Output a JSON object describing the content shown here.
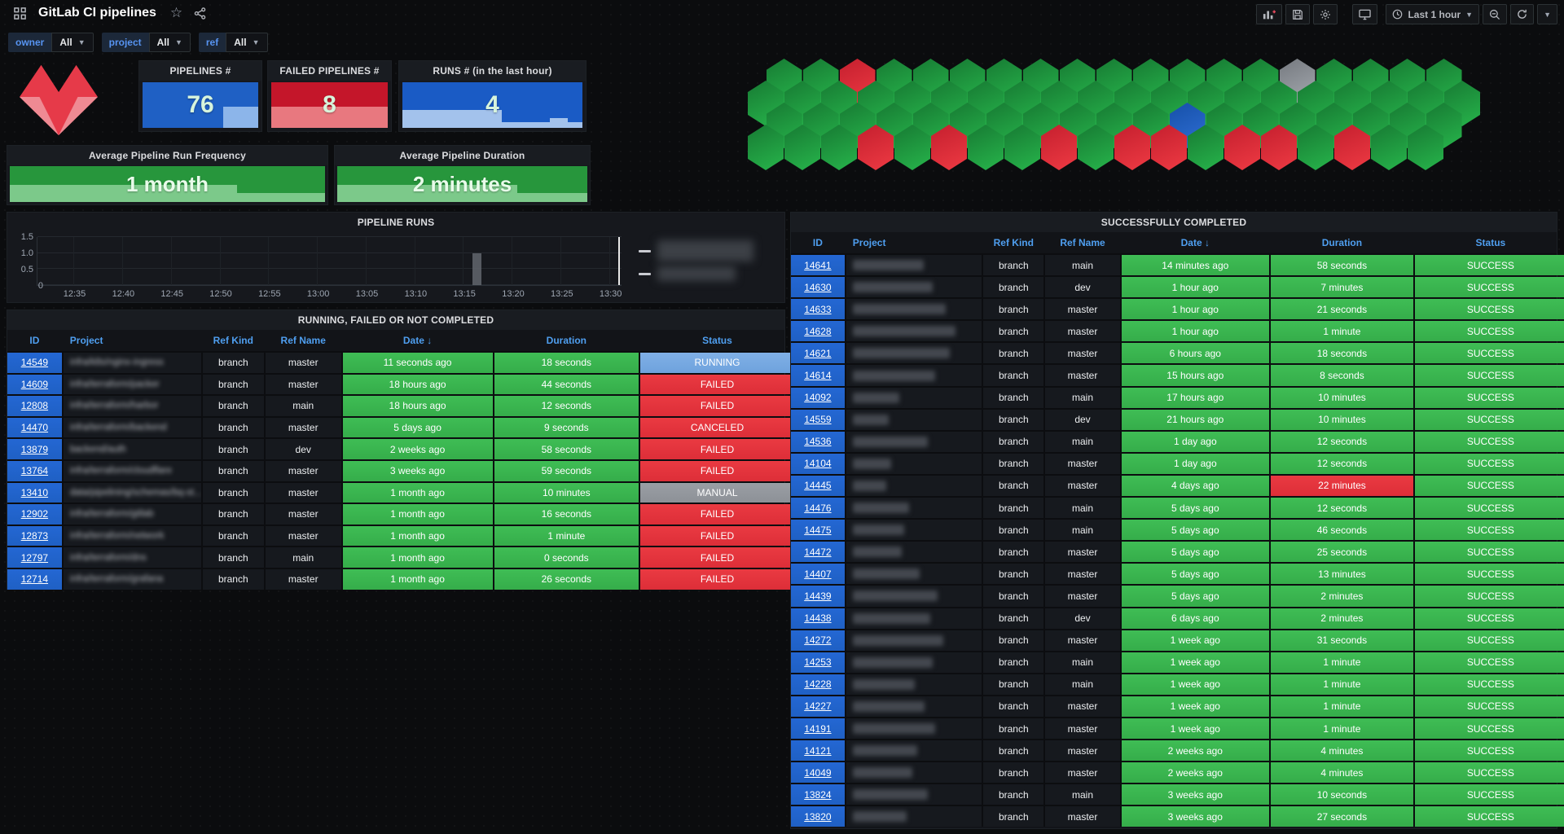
{
  "header": {
    "title": "GitLab CI pipelines",
    "icons": [
      "apps-grid-icon",
      "star-icon",
      "share-icon"
    ],
    "toolbar": {
      "add_panel": "add-panel",
      "save": "save-dashboard",
      "settings": "dashboard-settings",
      "tv_mode": "cycle-view-mode",
      "time_range": "Last 1 hour",
      "zoom_out": "zoom-out-time-range",
      "refresh": "refresh-dashboard"
    }
  },
  "filters": [
    {
      "label": "owner",
      "value": "All"
    },
    {
      "label": "project",
      "value": "All"
    },
    {
      "label": "ref",
      "value": "All"
    }
  ],
  "stats": [
    {
      "title": "PIPELINES #",
      "value": "76",
      "bg": "#1f60c4",
      "spark": "#8cb5ea",
      "shape": "right-step"
    },
    {
      "title": "FAILED PIPELINES #",
      "value": "8",
      "bg": "#c4162a",
      "spark": "#e8787f",
      "shape": "bottom-half"
    },
    {
      "title": "RUNS # (in the last hour)",
      "value": "4",
      "bg": "#1a5bc5",
      "spark": "#a3c2ec",
      "shape": "left-plateau"
    }
  ],
  "averages": [
    {
      "title": "Average Pipeline Run Frequency",
      "value": "1 month",
      "bg": "#27963c",
      "spark": "#7cc98a"
    },
    {
      "title": "Average Pipeline Duration",
      "value": "2 minutes",
      "bg": "#27963c",
      "spark": "#7cc98a"
    }
  ],
  "honeycomb": {
    "palette": {
      "g": [
        "#177a33",
        "#27b44b"
      ],
      "r": [
        "#c41f2e",
        "#ee3a43"
      ],
      "b": [
        "#16屋50a8",
        "#2f6fd6"
      ],
      "x": [
        "#75797f",
        "#a6abb1"
      ]
    },
    "rows": [
      {
        "offset": 1,
        "cells": [
          "g",
          "g",
          "r",
          "g",
          "g",
          "g",
          "g",
          "g",
          "g",
          "g",
          "g",
          "g",
          "g",
          "g",
          "x",
          "g",
          "g",
          "g",
          "g"
        ]
      },
      {
        "offset": 0,
        "cells": [
          "g",
          "g",
          "g",
          "g",
          "g",
          "g",
          "g",
          "g",
          "g",
          "g",
          "g",
          "g",
          "g",
          "g",
          "g",
          "g",
          "g",
          "g",
          "g",
          "g"
        ]
      },
      {
        "offset": 1,
        "cells": [
          "g",
          "g",
          "g",
          "g",
          "g",
          "g",
          "g",
          "g",
          "g",
          "g",
          "g",
          "b",
          "g",
          "g",
          "g",
          "g",
          "g",
          "g",
          "g"
        ]
      },
      {
        "offset": 0,
        "cells": [
          "g",
          "g",
          "g",
          "r",
          "g",
          "r",
          "g",
          "g",
          "r",
          "g",
          "r",
          "r",
          "g",
          "r",
          "r",
          "g",
          "r",
          "g",
          "g"
        ]
      }
    ]
  },
  "chart_data": {
    "type": "bar",
    "title": "PIPELINE RUNS",
    "x_ticks": [
      "12:35",
      "12:40",
      "12:45",
      "12:50",
      "12:55",
      "13:00",
      "13:05",
      "13:10",
      "13:15",
      "13:20",
      "13:25",
      "13:30"
    ],
    "y_ticks": [
      "1.5",
      "1.0",
      "0.5",
      "0"
    ],
    "ylim": [
      0,
      1.5
    ],
    "bars": [
      {
        "x": "13:16",
        "value": 1
      }
    ],
    "now_marker": "13:30",
    "grid": true,
    "legend_position": "right",
    "legend": [
      {
        "redacted": true
      },
      {
        "redacted": true
      }
    ]
  },
  "left_table": {
    "title": "RUNNING, FAILED OR NOT COMPLETED",
    "columns": [
      "ID",
      "Project",
      "Ref Kind",
      "Ref Name",
      "Date ↓",
      "Duration",
      "Status"
    ],
    "rows": [
      {
        "id": "14549",
        "project": "infra/k8s/nginx-ingress",
        "ref_kind": "branch",
        "ref_name": "master",
        "date": "11 seconds ago",
        "duration": "18 seconds",
        "status": "RUNNING"
      },
      {
        "id": "14609",
        "project": "infra/terraform/packer",
        "ref_kind": "branch",
        "ref_name": "master",
        "date": "18 hours ago",
        "duration": "44 seconds",
        "status": "FAILED"
      },
      {
        "id": "12808",
        "project": "infra/terraform/harbor",
        "ref_kind": "branch",
        "ref_name": "main",
        "date": "18 hours ago",
        "duration": "12 seconds",
        "status": "FAILED"
      },
      {
        "id": "14470",
        "project": "infra/terraform/backend",
        "ref_kind": "branch",
        "ref_name": "master",
        "date": "5 days ago",
        "duration": "9 seconds",
        "status": "CANCELED"
      },
      {
        "id": "13879",
        "project": "backend/auth",
        "ref_kind": "branch",
        "ref_name": "dev",
        "date": "2 weeks ago",
        "duration": "58 seconds",
        "status": "FAILED"
      },
      {
        "id": "13764",
        "project": "infra/terraform/cloudflare",
        "ref_kind": "branch",
        "ref_name": "master",
        "date": "3 weeks ago",
        "duration": "59 seconds",
        "status": "FAILED"
      },
      {
        "id": "13410",
        "project": "data/pipelining/schemas/bq-st...",
        "ref_kind": "branch",
        "ref_name": "master",
        "date": "1 month ago",
        "duration": "10 minutes",
        "status": "MANUAL"
      },
      {
        "id": "12902",
        "project": "infra/terraform/gitlab",
        "ref_kind": "branch",
        "ref_name": "master",
        "date": "1 month ago",
        "duration": "16 seconds",
        "status": "FAILED"
      },
      {
        "id": "12873",
        "project": "infra/terraform/network",
        "ref_kind": "branch",
        "ref_name": "master",
        "date": "1 month ago",
        "duration": "1 minute",
        "status": "FAILED"
      },
      {
        "id": "12797",
        "project": "infra/terraform/dns",
        "ref_kind": "branch",
        "ref_name": "main",
        "date": "1 month ago",
        "duration": "0 seconds",
        "status": "FAILED"
      },
      {
        "id": "12714",
        "project": "infra/terraform/grafana",
        "ref_kind": "branch",
        "ref_name": "master",
        "date": "1 month ago",
        "duration": "26 seconds",
        "status": "FAILED"
      }
    ]
  },
  "right_table": {
    "title": "SUCCESSFULLY COMPLETED",
    "columns": [
      "ID",
      "Project",
      "Ref Kind",
      "Ref Name",
      "Date ↓",
      "Duration",
      "Status"
    ],
    "rows": [
      {
        "id": "14641",
        "project_redacted": true,
        "blur_w": 55,
        "ref_kind": "branch",
        "ref_name": "main",
        "date": "14 minutes ago",
        "duration": "58 seconds",
        "status": "SUCCESS"
      },
      {
        "id": "14630",
        "project_redacted": true,
        "blur_w": 62,
        "ref_kind": "branch",
        "ref_name": "dev",
        "date": "1 hour ago",
        "duration": "7 minutes",
        "status": "SUCCESS"
      },
      {
        "id": "14633",
        "project_redacted": true,
        "blur_w": 72,
        "ref_kind": "branch",
        "ref_name": "master",
        "date": "1 hour ago",
        "duration": "21 seconds",
        "status": "SUCCESS"
      },
      {
        "id": "14628",
        "project_redacted": true,
        "blur_w": 80,
        "ref_kind": "branch",
        "ref_name": "master",
        "date": "1 hour ago",
        "duration": "1 minute",
        "status": "SUCCESS"
      },
      {
        "id": "14621",
        "project_redacted": true,
        "blur_w": 75,
        "ref_kind": "branch",
        "ref_name": "master",
        "date": "6 hours ago",
        "duration": "18 seconds",
        "status": "SUCCESS"
      },
      {
        "id": "14614",
        "project_redacted": true,
        "blur_w": 64,
        "ref_kind": "branch",
        "ref_name": "master",
        "date": "15 hours ago",
        "duration": "8 seconds",
        "status": "SUCCESS"
      },
      {
        "id": "14092",
        "project_redacted": true,
        "blur_w": 36,
        "ref_kind": "branch",
        "ref_name": "main",
        "date": "17 hours ago",
        "duration": "10 minutes",
        "status": "SUCCESS"
      },
      {
        "id": "14559",
        "project_redacted": true,
        "blur_w": 28,
        "ref_kind": "branch",
        "ref_name": "dev",
        "date": "21 hours ago",
        "duration": "10 minutes",
        "status": "SUCCESS"
      },
      {
        "id": "14536",
        "project_redacted": true,
        "blur_w": 58,
        "ref_kind": "branch",
        "ref_name": "main",
        "date": "1 day ago",
        "duration": "12 seconds",
        "status": "SUCCESS"
      },
      {
        "id": "14104",
        "project_redacted": true,
        "blur_w": 30,
        "ref_kind": "branch",
        "ref_name": "master",
        "date": "1 day ago",
        "duration": "12 seconds",
        "status": "SUCCESS"
      },
      {
        "id": "14445",
        "project_redacted": true,
        "blur_w": 26,
        "ref_kind": "branch",
        "ref_name": "master",
        "date": "4 days ago",
        "duration": "22 minutes",
        "status": "SUCCESS",
        "duration_alert": true
      },
      {
        "id": "14476",
        "project_redacted": true,
        "blur_w": 44,
        "ref_kind": "branch",
        "ref_name": "main",
        "date": "5 days ago",
        "duration": "12 seconds",
        "status": "SUCCESS"
      },
      {
        "id": "14475",
        "project_redacted": true,
        "blur_w": 40,
        "ref_kind": "branch",
        "ref_name": "main",
        "date": "5 days ago",
        "duration": "46 seconds",
        "status": "SUCCESS"
      },
      {
        "id": "14472",
        "project_redacted": true,
        "blur_w": 38,
        "ref_kind": "branch",
        "ref_name": "master",
        "date": "5 days ago",
        "duration": "25 seconds",
        "status": "SUCCESS"
      },
      {
        "id": "14407",
        "project_redacted": true,
        "blur_w": 52,
        "ref_kind": "branch",
        "ref_name": "master",
        "date": "5 days ago",
        "duration": "13 minutes",
        "status": "SUCCESS"
      },
      {
        "id": "14439",
        "project_redacted": true,
        "blur_w": 66,
        "ref_kind": "branch",
        "ref_name": "master",
        "date": "5 days ago",
        "duration": "2 minutes",
        "status": "SUCCESS"
      },
      {
        "id": "14438",
        "project_redacted": true,
        "blur_w": 60,
        "ref_kind": "branch",
        "ref_name": "dev",
        "date": "6 days ago",
        "duration": "2 minutes",
        "status": "SUCCESS"
      },
      {
        "id": "14272",
        "project_redacted": true,
        "blur_w": 70,
        "ref_kind": "branch",
        "ref_name": "master",
        "date": "1 week ago",
        "duration": "31 seconds",
        "status": "SUCCESS"
      },
      {
        "id": "14253",
        "project_redacted": true,
        "blur_w": 62,
        "ref_kind": "branch",
        "ref_name": "main",
        "date": "1 week ago",
        "duration": "1 minute",
        "status": "SUCCESS"
      },
      {
        "id": "14228",
        "project_redacted": true,
        "blur_w": 48,
        "ref_kind": "branch",
        "ref_name": "main",
        "date": "1 week ago",
        "duration": "1 minute",
        "status": "SUCCESS"
      },
      {
        "id": "14227",
        "project_redacted": true,
        "blur_w": 56,
        "ref_kind": "branch",
        "ref_name": "master",
        "date": "1 week ago",
        "duration": "1 minute",
        "status": "SUCCESS"
      },
      {
        "id": "14191",
        "project_redacted": true,
        "blur_w": 64,
        "ref_kind": "branch",
        "ref_name": "master",
        "date": "1 week ago",
        "duration": "1 minute",
        "status": "SUCCESS"
      },
      {
        "id": "14121",
        "project_redacted": true,
        "blur_w": 50,
        "ref_kind": "branch",
        "ref_name": "master",
        "date": "2 weeks ago",
        "duration": "4 minutes",
        "status": "SUCCESS"
      },
      {
        "id": "14049",
        "project_redacted": true,
        "blur_w": 46,
        "ref_kind": "branch",
        "ref_name": "master",
        "date": "2 weeks ago",
        "duration": "4 minutes",
        "status": "SUCCESS"
      },
      {
        "id": "13824",
        "project_redacted": true,
        "blur_w": 58,
        "ref_kind": "branch",
        "ref_name": "main",
        "date": "3 weeks ago",
        "duration": "10 seconds",
        "status": "SUCCESS"
      },
      {
        "id": "13820",
        "project_redacted": true,
        "blur_w": 42,
        "ref_kind": "branch",
        "ref_name": "master",
        "date": "3 weeks ago",
        "duration": "27 seconds",
        "status": "SUCCESS"
      }
    ]
  },
  "status_colors": {
    "SUCCESS": "green",
    "FAILED": "red",
    "CANCELED": "red",
    "RUNNING": "blue",
    "MANUAL": "gray"
  }
}
